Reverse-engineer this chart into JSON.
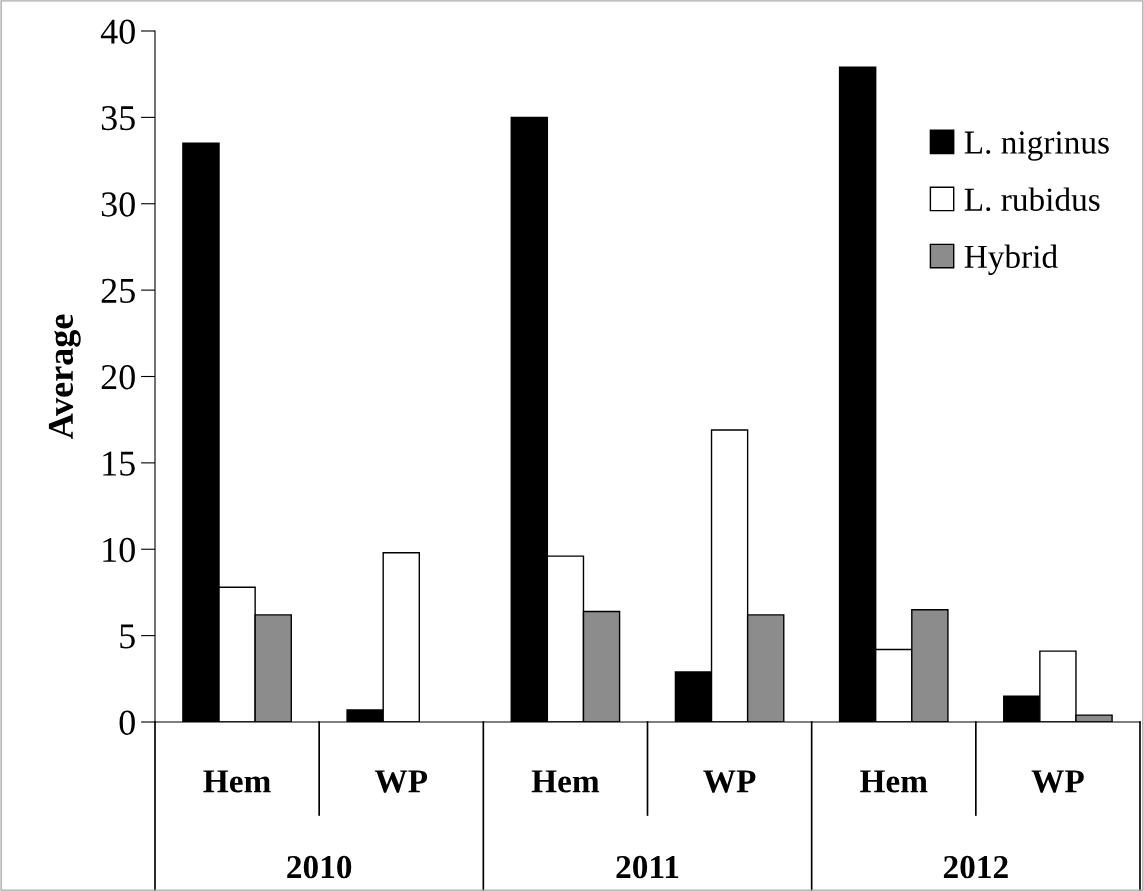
{
  "chart_data": {
    "type": "bar",
    "ylabel": "Average",
    "categories": [
      "Hem",
      "WP",
      "Hem",
      "WP",
      "Hem",
      "WP"
    ],
    "annotations": [
      "2010",
      "2011",
      "2012"
    ],
    "series": [
      {
        "name": "L. nigrinus",
        "color": "#000000",
        "values": [
          33.5,
          0.7,
          35.0,
          2.9,
          37.9,
          1.5
        ]
      },
      {
        "name": "L. rubidus",
        "color": "#ffffff",
        "values": [
          7.8,
          9.8,
          9.6,
          16.9,
          4.2,
          4.1
        ]
      },
      {
        "name": "Hybrid",
        "color": "#8c8c8c",
        "values": [
          6.2,
          null,
          6.4,
          6.2,
          6.5,
          0.4
        ]
      }
    ],
    "ylim": [
      0,
      40
    ],
    "yticks": [
      0,
      5,
      10,
      15,
      20,
      25,
      30,
      35,
      40
    ],
    "grid": false,
    "legend": "top right"
  }
}
